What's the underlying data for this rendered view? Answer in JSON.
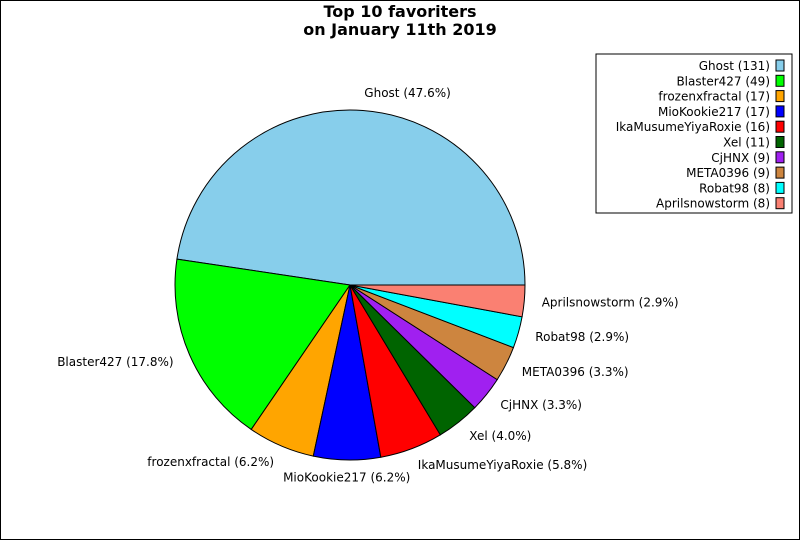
{
  "chart_data": {
    "type": "pie",
    "title_lines": [
      "Top 10 favoriters",
      "on January 11th 2019"
    ],
    "labels": [
      "Ghost",
      "Blaster427",
      "frozenxfractal",
      "MioKookie217",
      "IkaMusumeYiyaRoxie",
      "Xel",
      "CjHNX",
      "META0396",
      "Robat98",
      "Aprilsnowstorm"
    ],
    "values": [
      131,
      49,
      17,
      17,
      16,
      11,
      9,
      9,
      8,
      8
    ],
    "percent_labels": [
      "47.6%",
      "17.8%",
      "6.2%",
      "6.2%",
      "5.8%",
      "4.0%",
      "3.3%",
      "3.3%",
      "2.9%",
      "2.9%"
    ],
    "colors": [
      "#87ceeb",
      "#00ff00",
      "#ffa500",
      "#0000ff",
      "#ff0000",
      "#006400",
      "#a020f0",
      "#cd853f",
      "#00ffff",
      "#fa8072"
    ],
    "legend": {
      "position": "top-right",
      "entries": [
        "Ghost (131)",
        "Blaster427 (49)",
        "frozenxfractal (17)",
        "MioKookie217 (17)",
        "IkaMusumeYiyaRoxie (16)",
        "Xel (11)",
        "CjHNX (9)",
        "META0396 (9)",
        "Robat98 (8)",
        "Aprilsnowstorm (8)"
      ]
    }
  }
}
